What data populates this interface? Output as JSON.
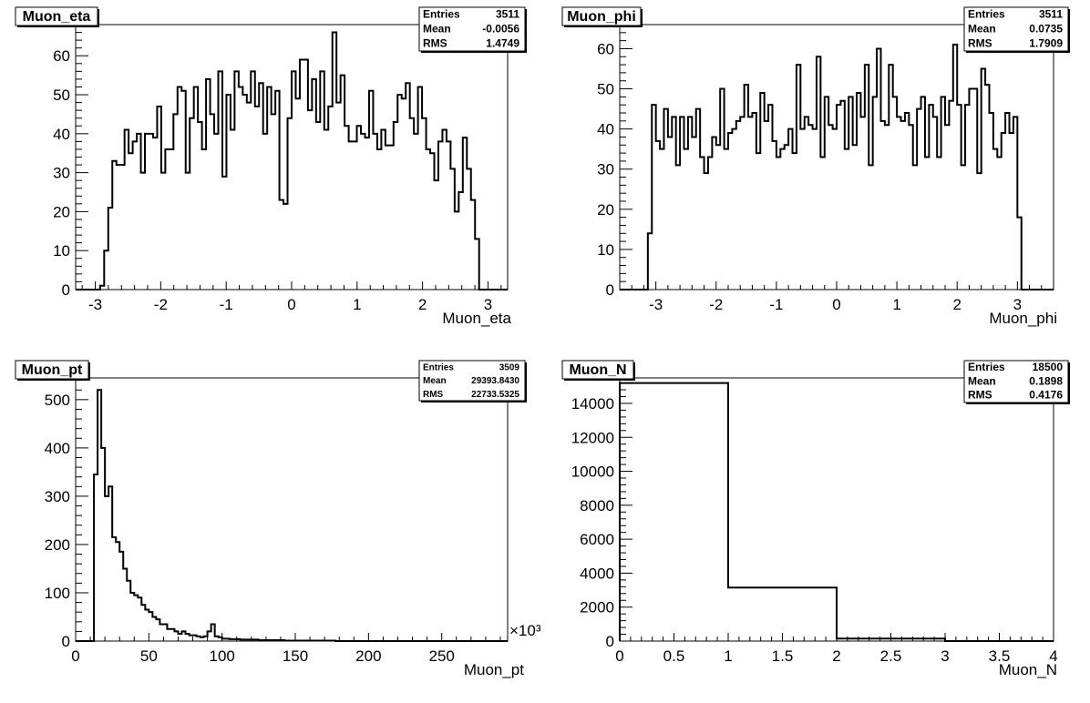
{
  "chart_data": [
    {
      "type": "histogram",
      "title": "Muon_eta",
      "xlabel": "Muon_eta",
      "ylabel": "",
      "xlim": [
        -3.3,
        3.3
      ],
      "ylim": [
        0,
        68
      ],
      "xticks": [
        -3,
        -2,
        -1,
        0,
        1,
        2,
        3
      ],
      "xtick_labels": [
        "-3",
        "-2",
        "-1",
        "0",
        "1",
        "2",
        "3"
      ],
      "yticks": [
        0,
        10,
        20,
        30,
        40,
        50,
        60
      ],
      "ytick_labels": [
        "0",
        "10",
        "20",
        "30",
        "40",
        "50",
        "60"
      ],
      "bins": {
        "xmin": -3.3,
        "xmax": 3.3,
        "values": [
          0,
          0,
          0,
          0,
          0,
          0,
          1,
          10,
          21,
          33,
          32,
          32,
          41,
          35,
          38,
          40,
          30,
          40,
          40,
          39,
          47,
          30,
          36,
          36,
          45,
          52,
          51,
          30,
          44,
          52,
          43,
          36,
          54,
          45,
          40,
          56,
          29,
          50,
          41,
          56,
          52,
          50,
          48,
          56,
          47,
          53,
          40,
          52,
          45,
          51,
          23,
          22,
          44,
          56,
          49,
          59,
          59,
          46,
          54,
          43,
          56,
          41,
          47,
          66,
          48,
          55,
          42,
          38,
          38,
          42,
          40,
          39,
          51,
          40,
          36,
          41,
          37,
          37,
          43,
          50,
          49,
          53,
          44,
          40,
          52,
          44,
          36,
          35,
          28,
          38,
          41,
          38,
          31,
          20,
          25,
          39,
          31,
          23,
          13,
          0,
          0,
          0,
          0,
          0,
          0,
          0
        ]
      },
      "stats": [
        {
          "key": "Entries",
          "value": "3511"
        },
        {
          "key": "Mean",
          "value": "-0.0056"
        },
        {
          "key": "RMS",
          "value": "1.4749"
        }
      ]
    },
    {
      "type": "histogram",
      "title": "Muon_phi",
      "xlabel": "Muon_phi",
      "ylabel": "",
      "xlim": [
        -3.6,
        3.6
      ],
      "ylim": [
        0,
        66
      ],
      "xticks": [
        -3,
        -2,
        -1,
        0,
        1,
        2,
        3
      ],
      "xtick_labels": [
        "-3",
        "-2",
        "-1",
        "0",
        "1",
        "2",
        "3"
      ],
      "yticks": [
        0,
        10,
        20,
        30,
        40,
        50,
        60
      ],
      "ytick_labels": [
        "0",
        "10",
        "20",
        "30",
        "40",
        "50",
        "60"
      ],
      "bins": {
        "xmin": -3.6,
        "xmax": 3.6,
        "values": [
          0,
          0,
          0,
          0,
          0,
          0,
          0,
          14,
          46,
          37,
          35,
          45,
          38,
          43,
          31,
          43,
          35,
          43,
          38,
          45,
          33,
          29,
          33,
          38,
          36,
          50,
          35,
          39,
          40,
          42,
          43,
          51,
          43,
          44,
          34,
          49,
          42,
          46,
          37,
          33,
          35,
          36,
          40,
          34,
          56,
          40,
          43,
          41,
          40,
          58,
          33,
          48,
          41,
          40,
          46,
          47,
          35,
          48,
          36,
          49,
          43,
          56,
          31,
          48,
          60,
          42,
          41,
          56,
          48,
          43,
          42,
          44,
          41,
          31,
          45,
          48,
          33,
          46,
          43,
          33,
          48,
          41,
          47,
          61,
          46,
          31,
          46,
          50,
          50,
          29,
          55,
          51,
          44,
          35,
          33,
          39,
          44,
          39,
          43,
          18,
          0,
          0,
          0,
          0,
          0,
          0,
          0,
          0
        ]
      },
      "stats": [
        {
          "key": "Entries",
          "value": "3511"
        },
        {
          "key": "Mean",
          "value": "0.0735"
        },
        {
          "key": "RMS",
          "value": "1.7909"
        }
      ]
    },
    {
      "type": "histogram",
      "title": "Muon_pt",
      "xlabel": "Muon_pt",
      "ylabel": "",
      "x_multiplier": "×10³",
      "xlim": [
        0,
        295
      ],
      "ylim": [
        0,
        545
      ],
      "xticks": [
        0,
        50,
        100,
        150,
        200,
        250
      ],
      "xtick_labels": [
        "0",
        "50",
        "100",
        "150",
        "200",
        "250"
      ],
      "yticks": [
        0,
        100,
        200,
        300,
        400,
        500
      ],
      "ytick_labels": [
        "0",
        "100",
        "200",
        "300",
        "400",
        "500"
      ],
      "bins": {
        "xmin": 0,
        "xmax": 295,
        "values": [
          0,
          0,
          0,
          0,
          0,
          345,
          520,
          400,
          300,
          320,
          215,
          205,
          185,
          150,
          125,
          100,
          95,
          90,
          75,
          65,
          60,
          50,
          45,
          35,
          35,
          25,
          25,
          20,
          15,
          20,
          15,
          12,
          12,
          10,
          8,
          10,
          20,
          35,
          10,
          8,
          5,
          5,
          4,
          4,
          4,
          3,
          3,
          3,
          3,
          3,
          2,
          2,
          2,
          2,
          2,
          2,
          2,
          1,
          1,
          1,
          1,
          1,
          1,
          1,
          1,
          1,
          1,
          1,
          1,
          1,
          1,
          0,
          0,
          0,
          0,
          0,
          0,
          0,
          0,
          0,
          0,
          0,
          0,
          0,
          0,
          0,
          0,
          0,
          0,
          0,
          0,
          0,
          0,
          0,
          0,
          0,
          0,
          0,
          0,
          0,
          0,
          0,
          0,
          0,
          0,
          0,
          0,
          0,
          0,
          0,
          0,
          0,
          0,
          0,
          0,
          0,
          0,
          0
        ]
      },
      "stats": [
        {
          "key": "Entries",
          "value": "3509"
        },
        {
          "key": "Mean",
          "value": "29393.8430"
        },
        {
          "key": "RMS",
          "value": "22733.5325"
        }
      ]
    },
    {
      "type": "histogram",
      "title": "Muon_N",
      "xlabel": "Muon_N",
      "ylabel": "",
      "xlim": [
        0,
        4
      ],
      "ylim": [
        0,
        15500
      ],
      "xticks": [
        0,
        0.5,
        1,
        1.5,
        2,
        2.5,
        3,
        3.5,
        4
      ],
      "xtick_labels": [
        "0",
        "0.5",
        "1",
        "1.5",
        "2",
        "2.5",
        "3",
        "3.5",
        "4"
      ],
      "yticks": [
        0,
        2000,
        4000,
        6000,
        8000,
        10000,
        12000,
        14000
      ],
      "ytick_labels": [
        "0",
        "2000",
        "4000",
        "6000",
        "8000",
        "10000",
        "12000",
        "14000"
      ],
      "bins": {
        "xmin": 0,
        "xmax": 4,
        "values": [
          15200,
          3150,
          150,
          0
        ]
      },
      "stats": [
        {
          "key": "Entries",
          "value": "18500"
        },
        {
          "key": "Mean",
          "value": "0.1898"
        },
        {
          "key": "RMS",
          "value": "0.4176"
        }
      ]
    }
  ]
}
